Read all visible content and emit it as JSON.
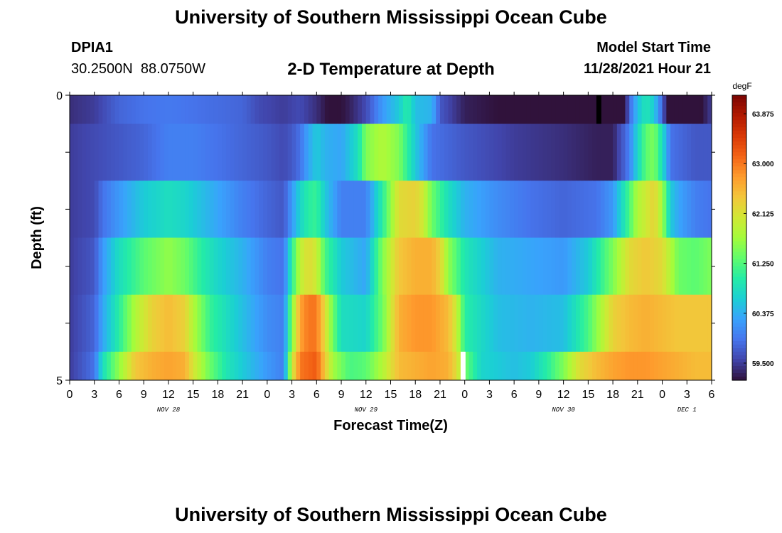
{
  "header": {
    "title": "University of Southern Mississippi Ocean Cube",
    "station_id": "DPIA1",
    "station_coords": "30.2500N  88.0750W",
    "subtitle": "2-D Temperature at Depth",
    "model_start_label": "Model Start Time",
    "model_start_value": "11/28/2021 Hour 21"
  },
  "footer": {
    "title": "University of Southern Mississippi Ocean Cube"
  },
  "colors": {
    "palette": [
      "#30123b",
      "#4145ab",
      "#4675ed",
      "#39a2fc",
      "#1bcfd4",
      "#24eca6",
      "#61fc6c",
      "#a4fc3b",
      "#d1e834",
      "#f3c63a",
      "#fe9b2d",
      "#f36315",
      "#d93806",
      "#b11901",
      "#7a0402"
    ],
    "missing": "#ffffff",
    "spike": "#000000"
  },
  "chart_data": {
    "type": "heatmap",
    "title": "2-D Temperature at Depth",
    "xlabel": "Forecast Time(Z)",
    "ylabel": "Depth (ft)",
    "unit": "degF",
    "x_range_hours": [
      0,
      78
    ],
    "y_range_ft": [
      0,
      5
    ],
    "y_tick_labels": [
      "0",
      "5"
    ],
    "x_tick_labels": [
      "0",
      "3",
      "6",
      "9",
      "12",
      "15",
      "18",
      "21",
      "0",
      "3",
      "6",
      "9",
      "12",
      "15",
      "18",
      "21",
      "0",
      "3",
      "6",
      "9",
      "12",
      "15",
      "18",
      "21",
      "0",
      "3",
      "6"
    ],
    "date_labels": [
      {
        "label": "NOV 28",
        "hour": 12
      },
      {
        "label": "NOV 29",
        "hour": 36
      },
      {
        "label": "NOV 30",
        "hour": 60
      },
      {
        "label": "DEC 1",
        "hour": 75
      }
    ],
    "colorbar": {
      "unit": "degF",
      "range": [
        59.2,
        64.2
      ],
      "ticks": [
        "63.875",
        "63.000",
        "62.125",
        "61.250",
        "60.375",
        "59.500"
      ]
    },
    "layers": [
      {
        "name": "surface",
        "keyframes": [
          [
            0,
            59.4
          ],
          [
            3,
            59.5
          ],
          [
            6,
            59.8
          ],
          [
            9,
            59.9
          ],
          [
            12,
            59.95
          ],
          [
            15,
            59.9
          ],
          [
            18,
            59.85
          ],
          [
            21,
            59.8
          ],
          [
            23,
            59.6
          ],
          [
            26,
            59.5
          ],
          [
            28,
            59.6
          ],
          [
            30,
            59.4
          ],
          [
            32,
            59.1
          ],
          [
            34,
            59.3
          ],
          [
            36,
            59.6
          ],
          [
            38,
            60.2
          ],
          [
            40,
            60.6
          ],
          [
            41,
            61.0
          ],
          [
            42,
            60.5
          ],
          [
            44,
            60.4
          ],
          [
            45,
            59.7
          ],
          [
            48,
            59.3
          ],
          [
            52,
            59.2
          ],
          [
            56,
            59.1
          ],
          [
            60,
            58.9
          ],
          [
            64,
            58.5
          ],
          [
            66,
            58.4
          ],
          [
            67,
            58.7
          ],
          [
            68,
            59.8
          ],
          [
            69,
            60.5
          ],
          [
            70,
            60.9
          ],
          [
            71,
            60.6
          ],
          [
            72,
            59.8
          ],
          [
            73,
            58.7
          ],
          [
            74,
            58.4
          ],
          [
            75,
            58.6
          ],
          [
            76,
            59.0
          ],
          [
            78,
            59.5
          ]
        ]
      },
      {
        "name": "layer-1",
        "keyframes": [
          [
            0,
            59.5
          ],
          [
            3,
            59.6
          ],
          [
            6,
            59.7
          ],
          [
            9,
            59.8
          ],
          [
            12,
            60.0
          ],
          [
            15,
            60.0
          ],
          [
            18,
            59.9
          ],
          [
            21,
            59.8
          ],
          [
            24,
            59.7
          ],
          [
            26,
            59.6
          ],
          [
            27,
            59.7
          ],
          [
            28,
            59.9
          ],
          [
            29,
            60.3
          ],
          [
            30,
            60.6
          ],
          [
            31,
            60.4
          ],
          [
            33,
            60.3
          ],
          [
            35,
            60.8
          ],
          [
            36,
            61.5
          ],
          [
            38,
            61.8
          ],
          [
            40,
            61.5
          ],
          [
            42,
            60.6
          ],
          [
            44,
            59.9
          ],
          [
            48,
            59.7
          ],
          [
            54,
            59.5
          ],
          [
            60,
            59.4
          ],
          [
            64,
            59.3
          ],
          [
            66,
            59.3
          ],
          [
            68,
            60.0
          ],
          [
            69,
            60.7
          ],
          [
            70,
            61.3
          ],
          [
            71,
            61.5
          ],
          [
            72,
            60.8
          ],
          [
            73,
            59.9
          ],
          [
            76,
            59.7
          ],
          [
            78,
            59.7
          ]
        ]
      },
      {
        "name": "layer-2",
        "keyframes": [
          [
            0,
            59.5
          ],
          [
            3,
            59.6
          ],
          [
            4,
            59.9
          ],
          [
            6,
            60.2
          ],
          [
            9,
            60.6
          ],
          [
            12,
            60.8
          ],
          [
            14,
            60.7
          ],
          [
            16,
            60.5
          ],
          [
            18,
            60.3
          ],
          [
            21,
            60.0
          ],
          [
            24,
            59.8
          ],
          [
            26,
            59.7
          ],
          [
            27,
            60.2
          ],
          [
            28,
            60.7
          ],
          [
            29,
            61.0
          ],
          [
            30,
            61.1
          ],
          [
            31,
            60.6
          ],
          [
            33,
            60.0
          ],
          [
            36,
            60.0
          ],
          [
            38,
            61.0
          ],
          [
            40,
            62.2
          ],
          [
            42,
            62.3
          ],
          [
            43,
            62.0
          ],
          [
            44,
            61.4
          ],
          [
            46,
            60.8
          ],
          [
            48,
            60.4
          ],
          [
            52,
            60.1
          ],
          [
            56,
            59.9
          ],
          [
            60,
            59.8
          ],
          [
            64,
            59.9
          ],
          [
            66,
            60.2
          ],
          [
            68,
            61.2
          ],
          [
            69,
            61.8
          ],
          [
            70,
            62.0
          ],
          [
            71,
            62.3
          ],
          [
            72,
            61.7
          ],
          [
            73,
            60.6
          ],
          [
            74,
            60.3
          ],
          [
            76,
            60.0
          ],
          [
            78,
            59.9
          ]
        ]
      },
      {
        "name": "layer-3",
        "keyframes": [
          [
            0,
            59.5
          ],
          [
            3,
            59.7
          ],
          [
            4,
            60.2
          ],
          [
            6,
            60.8
          ],
          [
            9,
            61.3
          ],
          [
            12,
            61.6
          ],
          [
            14,
            61.4
          ],
          [
            16,
            61.0
          ],
          [
            18,
            60.7
          ],
          [
            21,
            60.4
          ],
          [
            24,
            60.0
          ],
          [
            26,
            59.9
          ],
          [
            27,
            61.0
          ],
          [
            28,
            61.9
          ],
          [
            29,
            62.2
          ],
          [
            30,
            62.0
          ],
          [
            31,
            61.2
          ],
          [
            33,
            60.6
          ],
          [
            36,
            60.3
          ],
          [
            38,
            61.5
          ],
          [
            40,
            62.4
          ],
          [
            42,
            62.6
          ],
          [
            44,
            62.6
          ],
          [
            45,
            62.3
          ],
          [
            46,
            61.6
          ],
          [
            48,
            60.9
          ],
          [
            52,
            60.4
          ],
          [
            56,
            60.3
          ],
          [
            60,
            60.2
          ],
          [
            63,
            60.6
          ],
          [
            66,
            61.5
          ],
          [
            68,
            62.2
          ],
          [
            70,
            62.4
          ],
          [
            72,
            62.2
          ],
          [
            74,
            61.4
          ],
          [
            76,
            61.3
          ],
          [
            78,
            61.5
          ]
        ]
      },
      {
        "name": "layer-4",
        "keyframes": [
          [
            0,
            59.5
          ],
          [
            3,
            59.8
          ],
          [
            4,
            60.3
          ],
          [
            6,
            61.0
          ],
          [
            8,
            61.8
          ],
          [
            10,
            62.3
          ],
          [
            12,
            62.5
          ],
          [
            14,
            62.3
          ],
          [
            15,
            61.8
          ],
          [
            17,
            61.1
          ],
          [
            19,
            60.8
          ],
          [
            21,
            60.5
          ],
          [
            24,
            60.1
          ],
          [
            26,
            60.0
          ],
          [
            27,
            61.5
          ],
          [
            28,
            62.7
          ],
          [
            29,
            63.0
          ],
          [
            30,
            63.0
          ],
          [
            31,
            62.2
          ],
          [
            32,
            61.4
          ],
          [
            33,
            60.8
          ],
          [
            36,
            60.7
          ],
          [
            38,
            61.4
          ],
          [
            40,
            62.6
          ],
          [
            42,
            62.8
          ],
          [
            44,
            62.8
          ],
          [
            46,
            62.5
          ],
          [
            47,
            62.0
          ],
          [
            48,
            61.0
          ],
          [
            52,
            60.5
          ],
          [
            56,
            60.4
          ],
          [
            60,
            60.5
          ],
          [
            63,
            61.2
          ],
          [
            66,
            62.3
          ],
          [
            68,
            62.5
          ],
          [
            70,
            62.6
          ],
          [
            72,
            62.5
          ],
          [
            74,
            62.4
          ],
          [
            76,
            62.4
          ],
          [
            78,
            62.4
          ]
        ]
      },
      {
        "name": "bottom",
        "keyframes": [
          [
            0,
            59.5
          ],
          [
            3,
            59.9
          ],
          [
            4,
            60.8
          ],
          [
            6,
            61.6
          ],
          [
            8,
            62.4
          ],
          [
            10,
            62.6
          ],
          [
            12,
            62.7
          ],
          [
            14,
            62.6
          ],
          [
            15,
            62.1
          ],
          [
            17,
            61.4
          ],
          [
            19,
            60.9
          ],
          [
            21,
            60.6
          ],
          [
            24,
            60.2
          ],
          [
            26,
            60.0
          ],
          [
            27,
            62.0
          ],
          [
            28,
            63.0
          ],
          [
            29,
            63.1
          ],
          [
            30,
            63.2
          ],
          [
            31,
            62.4
          ],
          [
            32,
            61.7
          ],
          [
            34,
            61.2
          ],
          [
            36,
            61.3
          ],
          [
            38,
            61.8
          ],
          [
            40,
            62.5
          ],
          [
            42,
            62.6
          ],
          [
            44,
            62.7
          ],
          [
            46,
            62.6
          ],
          [
            47,
            62.2
          ],
          [
            48,
            61.4
          ],
          [
            50,
            60.7
          ],
          [
            54,
            60.5
          ],
          [
            56,
            60.6
          ],
          [
            58,
            61.0
          ],
          [
            60,
            61.5
          ],
          [
            62,
            62.2
          ],
          [
            64,
            62.5
          ],
          [
            66,
            62.7
          ],
          [
            68,
            62.8
          ],
          [
            70,
            62.8
          ],
          [
            72,
            62.7
          ],
          [
            74,
            62.6
          ],
          [
            76,
            62.5
          ],
          [
            78,
            62.5
          ]
        ]
      }
    ],
    "layer_bounds_ft": [
      0,
      0.5,
      1.5,
      2.5,
      3.5,
      4.5,
      5
    ],
    "missing_cells": [
      {
        "layer": "bottom",
        "hour_start": 47.5,
        "hour_end": 48.1
      }
    ],
    "spike_cells": [
      {
        "layer": "surface",
        "hour_start": 64.0,
        "hour_end": 64.6
      }
    ]
  }
}
